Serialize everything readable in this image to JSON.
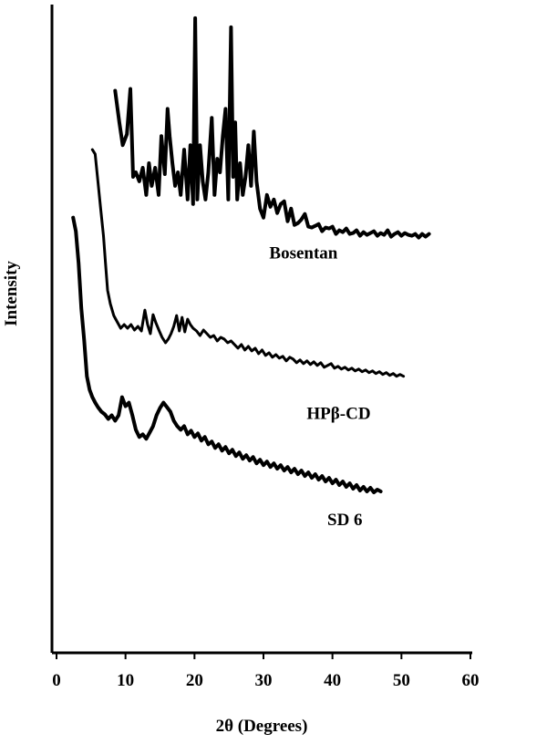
{
  "chart_data": {
    "type": "line",
    "xlabel": "2θ (Degrees)",
    "ylabel": "Intensity",
    "xlim": [
      0,
      60
    ],
    "x_ticks": [
      0,
      10,
      20,
      30,
      40,
      50,
      60
    ],
    "y_ticks": [],
    "grid": false,
    "legend": "none",
    "series_color": "#000000",
    "series": [
      {
        "name": "Bosentan",
        "label_x": 35.8,
        "label_offset": -27,
        "x": [
          8.5,
          9.1,
          9.6,
          10.2,
          10.7,
          11.1,
          11.5,
          12.0,
          12.5,
          13.0,
          13.4,
          13.8,
          14.3,
          14.8,
          15.2,
          15.7,
          16.1,
          16.4,
          16.8,
          17.2,
          17.6,
          18.0,
          18.5,
          19.0,
          19.4,
          19.8,
          20.1,
          20.4,
          20.8,
          21.2,
          21.6,
          22.0,
          22.5,
          22.9,
          23.3,
          23.7,
          24.1,
          24.5,
          24.9,
          25.3,
          25.6,
          25.9,
          26.2,
          26.6,
          27.0,
          27.4,
          27.8,
          28.2,
          28.6,
          29.0,
          29.5,
          30.0,
          30.5,
          31.0,
          31.5,
          32.0,
          32.5,
          33.0,
          33.5,
          34.0,
          34.5,
          35.0,
          35.5,
          36.0,
          36.5,
          37.0,
          37.5,
          38.0,
          38.5,
          39.0,
          39.5,
          40.0,
          40.5,
          41.0,
          41.5,
          42.0,
          42.5,
          43.0,
          43.5,
          44.0,
          44.5,
          45.0,
          45.5,
          46.0,
          46.5,
          47.0,
          47.5,
          48.0,
          48.5,
          49.0,
          49.5,
          50.0,
          50.5,
          51.0,
          51.5,
          52.0,
          52.5,
          53.0,
          53.5,
          54.0
        ],
        "y": [
          620,
          585,
          560,
          572,
          622,
          525,
          530,
          520,
          535,
          505,
          540,
          515,
          535,
          505,
          570,
          528,
          600,
          570,
          540,
          515,
          530,
          505,
          555,
          500,
          560,
          495,
          700,
          500,
          560,
          520,
          500,
          530,
          590,
          505,
          545,
          530,
          570,
          600,
          500,
          690,
          525,
          585,
          500,
          540,
          505,
          525,
          560,
          515,
          575,
          520,
          490,
          480,
          505,
          492,
          500,
          485,
          495,
          498,
          476,
          490,
          472,
          474,
          478,
          484,
          470,
          469,
          471,
          473,
          465,
          469,
          468,
          470,
          462,
          466,
          464,
          468,
          462,
          463,
          466,
          460,
          464,
          461,
          463,
          465,
          460,
          463,
          461,
          466,
          459,
          462,
          464,
          460,
          463,
          461,
          460,
          462,
          458,
          462,
          459,
          462
        ]
      },
      {
        "name": "HPβ-CD",
        "label_x": 40.9,
        "label_offset": -47,
        "x": [
          5.2,
          5.6,
          6.0,
          6.4,
          6.8,
          7.1,
          7.4,
          7.8,
          8.3,
          8.8,
          9.3,
          9.8,
          10.3,
          10.8,
          11.3,
          11.8,
          12.3,
          12.8,
          13.2,
          13.6,
          14.0,
          14.4,
          14.9,
          15.3,
          15.8,
          16.2,
          16.6,
          17.0,
          17.4,
          17.8,
          18.2,
          18.6,
          19.0,
          19.4,
          19.8,
          20.3,
          20.8,
          21.3,
          21.8,
          22.3,
          22.8,
          23.3,
          23.8,
          24.3,
          24.8,
          25.3,
          25.8,
          26.3,
          26.8,
          27.3,
          27.8,
          28.3,
          28.8,
          29.3,
          29.8,
          30.3,
          30.8,
          31.3,
          31.8,
          32.3,
          32.8,
          33.3,
          33.8,
          34.3,
          34.8,
          35.3,
          35.8,
          36.3,
          36.8,
          37.3,
          37.8,
          38.3,
          38.8,
          39.3,
          39.8,
          40.3,
          40.8,
          41.3,
          41.8,
          42.3,
          42.8,
          43.3,
          43.8,
          44.3,
          44.8,
          45.3,
          45.8,
          46.3,
          46.8,
          47.3,
          47.8,
          48.3,
          48.8,
          49.3,
          49.8,
          50.3
        ],
        "y": [
          555,
          550,
          520,
          490,
          460,
          430,
          400,
          385,
          372,
          365,
          358,
          362,
          358,
          362,
          356,
          360,
          355,
          378,
          362,
          352,
          373,
          364,
          355,
          348,
          342,
          346,
          352,
          360,
          372,
          355,
          370,
          354,
          368,
          362,
          358,
          355,
          350,
          356,
          352,
          348,
          350,
          344,
          348,
          346,
          342,
          344,
          340,
          336,
          340,
          334,
          338,
          333,
          336,
          330,
          334,
          328,
          331,
          326,
          329,
          325,
          327,
          322,
          326,
          324,
          320,
          323,
          319,
          322,
          318,
          321,
          317,
          320,
          315,
          317,
          319,
          314,
          316,
          313,
          315,
          312,
          314,
          311,
          313,
          310,
          312,
          309,
          311,
          308,
          310,
          307,
          309,
          306,
          308,
          305,
          307,
          305
        ]
      },
      {
        "name": "SD 6",
        "label_x": 41.8,
        "label_offset": -37,
        "x": [
          2.4,
          2.8,
          3.2,
          3.6,
          4.0,
          4.4,
          4.8,
          5.2,
          5.6,
          6.0,
          6.5,
          7.0,
          7.5,
          8.0,
          8.5,
          9.0,
          9.5,
          10.0,
          10.5,
          11.0,
          11.5,
          12.0,
          12.5,
          13.0,
          13.5,
          14.0,
          14.5,
          15.0,
          15.5,
          16.0,
          16.5,
          17.0,
          17.5,
          18.0,
          18.5,
          19.0,
          19.5,
          20.0,
          20.5,
          21.0,
          21.5,
          22.0,
          22.5,
          23.0,
          23.5,
          24.0,
          24.5,
          25.0,
          25.5,
          26.0,
          26.5,
          27.0,
          27.5,
          28.0,
          28.5,
          29.0,
          29.5,
          30.0,
          30.5,
          31.0,
          31.5,
          32.0,
          32.5,
          33.0,
          33.5,
          34.0,
          34.5,
          35.0,
          35.5,
          36.0,
          36.5,
          37.0,
          37.5,
          38.0,
          38.5,
          39.0,
          39.5,
          40.0,
          40.5,
          41.0,
          41.5,
          42.0,
          42.5,
          43.0,
          43.5,
          44.0,
          44.5,
          45.0,
          45.5,
          46.0,
          46.5,
          47.0
        ],
        "y": [
          480,
          465,
          430,
          380,
          345,
          305,
          290,
          282,
          276,
          271,
          266,
          263,
          258,
          262,
          256,
          262,
          282,
          272,
          276,
          262,
          246,
          238,
          241,
          236,
          243,
          250,
          262,
          270,
          276,
          271,
          266,
          256,
          250,
          246,
          250,
          241,
          245,
          238,
          242,
          234,
          238,
          230,
          233,
          226,
          230,
          223,
          227,
          220,
          224,
          217,
          221,
          214,
          218,
          212,
          216,
          209,
          213,
          207,
          211,
          205,
          209,
          203,
          207,
          201,
          205,
          199,
          203,
          197,
          201,
          195,
          199,
          193,
          197,
          191,
          195,
          189,
          193,
          187,
          191,
          185,
          189,
          183,
          187,
          181,
          185,
          179,
          183,
          178,
          182,
          177,
          180,
          178
        ]
      }
    ]
  }
}
